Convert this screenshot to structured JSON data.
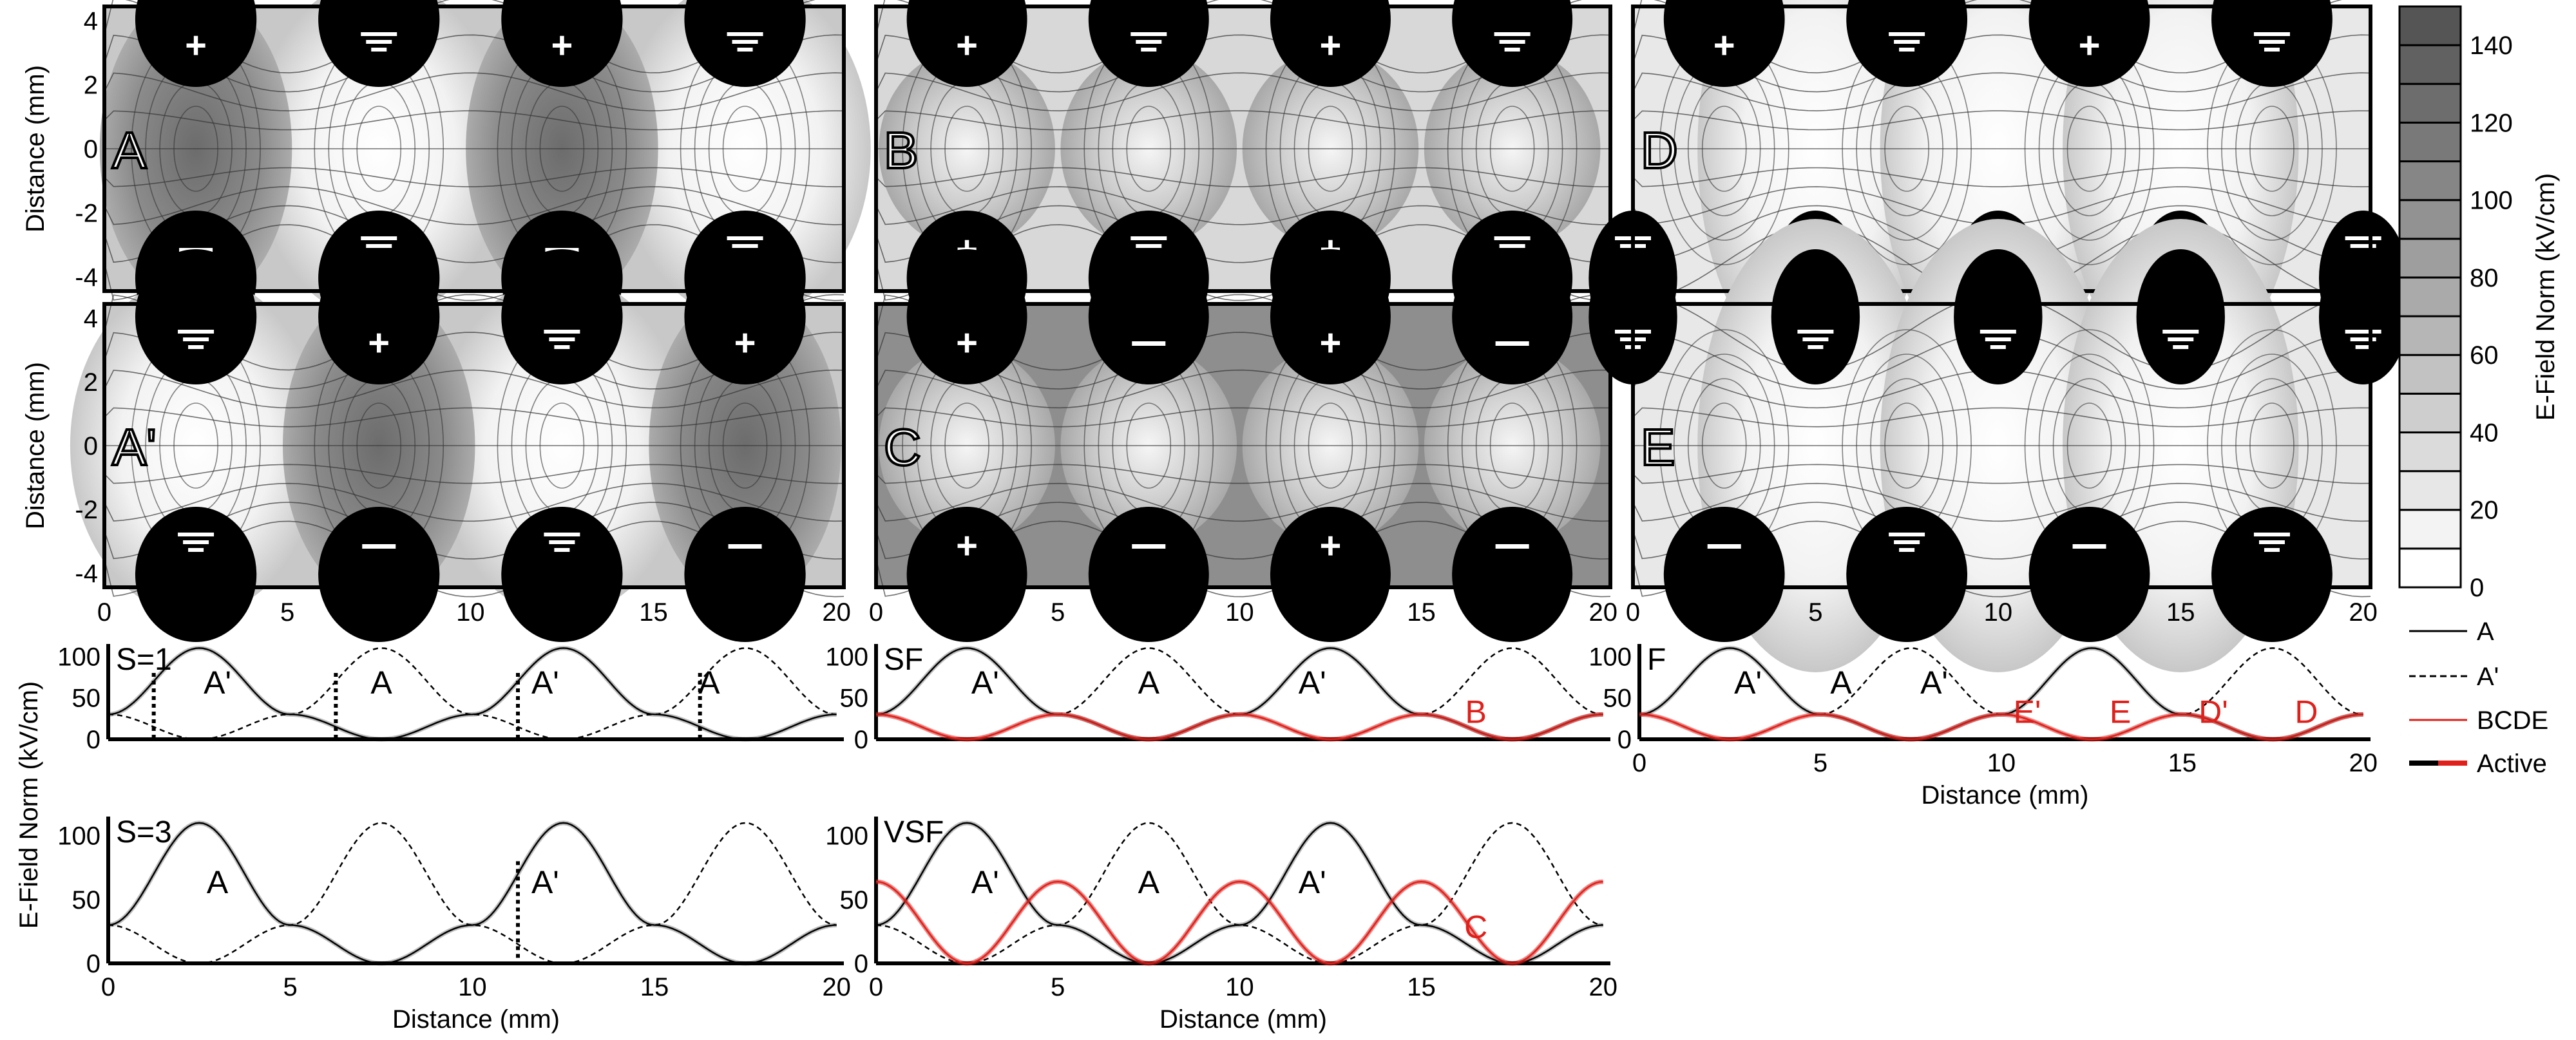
{
  "figure": {
    "colorbar": {
      "label": "E-Field Norm (kV/cm)",
      "ticks": [
        "0",
        "20",
        "40",
        "60",
        "80",
        "100",
        "120",
        "140"
      ],
      "max": 150
    },
    "field_map_axes": {
      "ylabel": "Distance (mm)",
      "y_ticks": [
        "4",
        "2",
        "0",
        "-2",
        "-4"
      ],
      "x_ticks": [
        "0",
        "5",
        "10",
        "15",
        "20"
      ]
    },
    "glyphs": {
      "plus": "+",
      "minus": "—",
      "ground": "ground-symbol"
    },
    "colors": {
      "active_black": "#000000",
      "bcde_red": "#e0201b",
      "electrode": "#000000"
    },
    "profile_axes": {
      "ylabel": "E-Field Norm (kV/cm)",
      "xlabel": "Distance (mm)",
      "y_ticks": [
        "100",
        "50",
        "0"
      ],
      "x_ticks": [
        "0",
        "5",
        "10",
        "15",
        "20"
      ]
    },
    "legend": {
      "A": "A",
      "Aprime": "A'",
      "BCDE": "BCDE",
      "Active": "Active"
    }
  },
  "chart_data": [
    {
      "type": "heatmap",
      "panel": "A",
      "xlim": [
        0,
        20.2
      ],
      "ylim": [
        -4.2,
        4.2
      ],
      "top_electrodes": [
        "+",
        "ground",
        "+",
        "ground"
      ],
      "bottom_electrodes": [
        "—",
        "ground",
        "—",
        "ground"
      ]
    },
    {
      "type": "heatmap",
      "panel": "B",
      "xlim": [
        0,
        20.2
      ],
      "ylim": [
        -4.2,
        4.2
      ],
      "top_electrodes": [
        "+",
        "ground",
        "+",
        "ground"
      ],
      "bottom_electrodes": [
        "+",
        "ground",
        "+",
        "ground"
      ]
    },
    {
      "type": "heatmap",
      "panel": "D",
      "xlim": [
        0,
        20.2
      ],
      "ylim": [
        -4.2,
        4.2
      ],
      "top_electrodes": [
        "+",
        "ground",
        "+",
        "ground"
      ],
      "bottom_electrodes": [
        "ground",
        "ground",
        "ground",
        "ground",
        "ground"
      ]
    },
    {
      "type": "heatmap",
      "panel": "A'",
      "xlim": [
        0,
        20.2
      ],
      "ylim": [
        -4.2,
        4.2
      ],
      "top_electrodes": [
        "ground",
        "+",
        "ground",
        "+"
      ],
      "bottom_electrodes": [
        "ground",
        "—",
        "ground",
        "—"
      ]
    },
    {
      "type": "heatmap",
      "panel": "C",
      "xlim": [
        0,
        20.2
      ],
      "ylim": [
        -4.2,
        4.2
      ],
      "top_electrodes": [
        "+",
        "—",
        "+",
        "—"
      ],
      "bottom_electrodes": [
        "+",
        "—",
        "+",
        "—"
      ]
    },
    {
      "type": "heatmap",
      "panel": "E",
      "xlim": [
        0,
        20.2
      ],
      "ylim": [
        -4.2,
        4.2
      ],
      "top_electrodes": [
        "ground",
        "ground",
        "ground",
        "ground",
        "ground"
      ],
      "bottom_electrodes": [
        "—",
        "ground",
        "—",
        "ground"
      ]
    },
    {
      "type": "line",
      "panel": "S=1",
      "xlim": [
        0,
        20.2
      ],
      "ylim": [
        0,
        115
      ],
      "series": [
        {
          "name": "A",
          "x": [
            0,
            2.5,
            5,
            7.5,
            10,
            12.5,
            15,
            17.5,
            20
          ],
          "y": [
            30,
            110,
            30,
            0,
            30,
            110,
            30,
            0,
            30
          ]
        },
        {
          "name": "A'",
          "x": [
            0,
            2.5,
            5,
            7.5,
            10,
            12.5,
            15,
            17.5,
            20
          ],
          "y": [
            30,
            0,
            30,
            110,
            30,
            0,
            30,
            110,
            30
          ]
        }
      ],
      "switch_x": [
        1.25,
        6.25,
        11.25,
        16.25
      ],
      "region_labels": [
        "A'",
        "A",
        "A'",
        "A"
      ]
    },
    {
      "type": "line",
      "panel": "S=3",
      "xlim": [
        0,
        20.2
      ],
      "ylim": [
        0,
        115
      ],
      "series": [
        {
          "name": "A",
          "x": [
            0,
            2.5,
            5,
            7.5,
            10,
            12.5,
            15,
            17.5,
            20
          ],
          "y": [
            30,
            110,
            30,
            0,
            30,
            110,
            30,
            0,
            30
          ]
        },
        {
          "name": "A'",
          "x": [
            0,
            2.5,
            5,
            7.5,
            10,
            12.5,
            15,
            17.5,
            20
          ],
          "y": [
            30,
            0,
            30,
            110,
            30,
            0,
            30,
            110,
            30
          ]
        }
      ],
      "switch_x": [
        11.25
      ],
      "region_labels": [
        "A",
        "A'"
      ]
    },
    {
      "type": "line",
      "panel": "SF",
      "xlim": [
        0,
        20.2
      ],
      "ylim": [
        0,
        115
      ],
      "series": [
        {
          "name": "A",
          "x": [
            0,
            2.5,
            5,
            7.5,
            10,
            12.5,
            15,
            17.5,
            20
          ],
          "y": [
            30,
            110,
            30,
            0,
            30,
            110,
            30,
            0,
            30
          ]
        },
        {
          "name": "A'",
          "x": [
            0,
            2.5,
            5,
            7.5,
            10,
            12.5,
            15,
            17.5,
            20
          ],
          "y": [
            30,
            0,
            30,
            110,
            30,
            0,
            30,
            110,
            30
          ]
        },
        {
          "name": "BCDE",
          "x": [
            0,
            2.5,
            5,
            7.5,
            10,
            12.5,
            15,
            17.5,
            20
          ],
          "y": [
            30,
            0,
            30,
            0,
            30,
            0,
            30,
            0,
            30
          ]
        }
      ],
      "region_labels": [
        "A'",
        "A",
        "A'",
        "B"
      ]
    },
    {
      "type": "line",
      "panel": "VSF",
      "xlim": [
        0,
        20.2
      ],
      "ylim": [
        0,
        115
      ],
      "series": [
        {
          "name": "A",
          "x": [
            0,
            2.5,
            5,
            7.5,
            10,
            12.5,
            15,
            17.5,
            20
          ],
          "y": [
            30,
            110,
            30,
            0,
            30,
            110,
            30,
            0,
            30
          ]
        },
        {
          "name": "A'",
          "x": [
            0,
            2.5,
            5,
            7.5,
            10,
            12.5,
            15,
            17.5,
            20
          ],
          "y": [
            30,
            0,
            30,
            110,
            30,
            0,
            30,
            110,
            30
          ]
        },
        {
          "name": "BCDE",
          "x": [
            0,
            2.5,
            5,
            7.5,
            10,
            12.5,
            15,
            17.5,
            20
          ],
          "y": [
            64,
            0,
            64,
            0,
            64,
            0,
            64,
            0,
            64
          ]
        }
      ],
      "region_labels": [
        "A'",
        "A",
        "A'",
        "C"
      ]
    },
    {
      "type": "line",
      "panel": "F",
      "xlim": [
        0,
        20.2
      ],
      "ylim": [
        0,
        115
      ],
      "series": [
        {
          "name": "A",
          "x": [
            0,
            2.5,
            5,
            7.5,
            10,
            12.5,
            15,
            17.5,
            20
          ],
          "y": [
            30,
            110,
            30,
            0,
            30,
            110,
            30,
            0,
            30
          ]
        },
        {
          "name": "A'",
          "x": [
            0,
            2.5,
            5,
            7.5,
            10,
            12.5,
            15,
            17.5,
            20
          ],
          "y": [
            30,
            0,
            30,
            110,
            30,
            0,
            30,
            110,
            30
          ]
        },
        {
          "name": "BCDE",
          "x": [
            0,
            2.5,
            5,
            7.5,
            10,
            12.5,
            15,
            17.5,
            20
          ],
          "y": [
            30,
            0,
            30,
            0,
            30,
            0,
            30,
            0,
            30
          ]
        }
      ],
      "region_labels": [
        "A'",
        "A",
        "A'",
        "E'",
        "E",
        "D'",
        "D"
      ]
    }
  ]
}
